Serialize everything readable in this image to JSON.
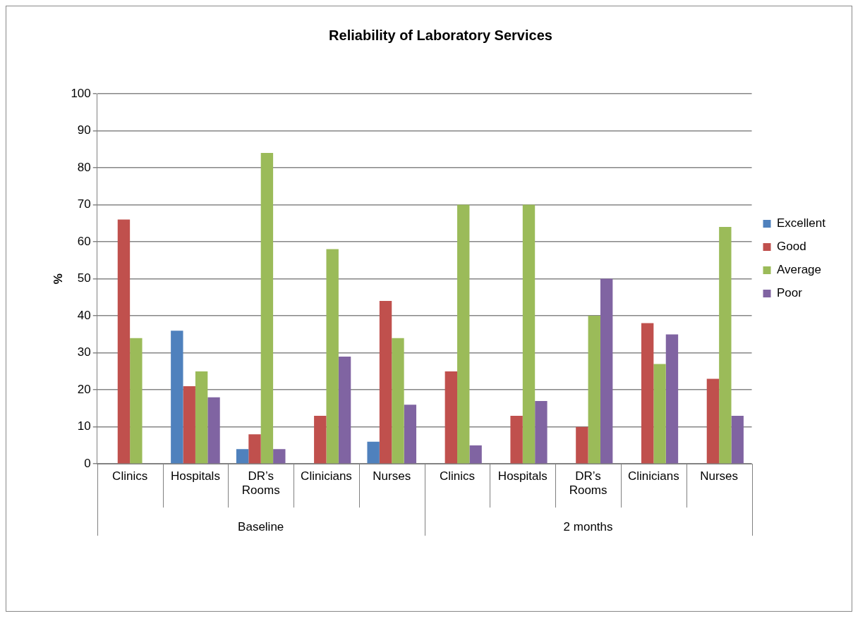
{
  "chart_data": {
    "type": "bar",
    "title": "Reliability of Laboratory Services",
    "ylabel": "%",
    "categories": [
      "Clinics",
      "Hospitals",
      "DR’s Rooms",
      "Clinicians",
      "Nurses",
      "Clinics",
      "Hospitals",
      "DR’s Rooms",
      "Clinicians",
      "Nurses"
    ],
    "series": [
      {
        "name": "Excellent",
        "color": "#4f81bd",
        "values": [
          0,
          36,
          4,
          0,
          6,
          0,
          0,
          0,
          0,
          0
        ]
      },
      {
        "name": "Good",
        "color": "#c0504d",
        "values": [
          66,
          21,
          8,
          13,
          44,
          25,
          13,
          10,
          38,
          23
        ]
      },
      {
        "name": "Average",
        "color": "#9bbb59",
        "values": [
          34,
          25,
          84,
          58,
          34,
          70,
          70,
          40,
          27,
          64
        ]
      },
      {
        "name": "Poor",
        "color": "#8064a2",
        "values": [
          0,
          18,
          4,
          29,
          16,
          5,
          17,
          50,
          35,
          13
        ]
      }
    ],
    "annotations": [
      "Baseline",
      "2 months"
    ],
    "ylim": [
      0,
      100
    ],
    "yticks": [
      0,
      10,
      20,
      30,
      40,
      50,
      60,
      70,
      80,
      90,
      100
    ],
    "grid": "y",
    "legend": "right"
  }
}
